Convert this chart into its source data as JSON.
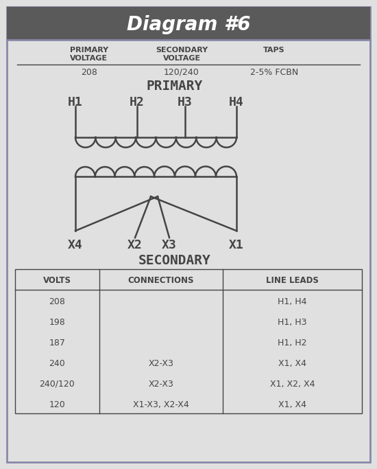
{
  "title": "Diagram #6",
  "title_bg": "#5a5a5a",
  "title_color": "#ffffff",
  "bg_color": "#e0e0e0",
  "border_color": "#8888aa",
  "diagram_color": "#444444",
  "primary_voltage": "208",
  "secondary_voltage": "120/240",
  "taps": "2-5% FCBN",
  "primary_label": "PRIMARY",
  "secondary_label": "SECONDARY",
  "h_labels": [
    "H1",
    "H2",
    "H3",
    "H4"
  ],
  "x_labels": [
    "X4",
    "X2",
    "X3",
    "X1"
  ],
  "table_headers": [
    "VOLTS",
    "CONNECTIONS",
    "LINE LEADS"
  ],
  "table_rows": [
    [
      "208",
      "",
      "H1, H4"
    ],
    [
      "198",
      "",
      "H1, H3"
    ],
    [
      "187",
      "",
      "H1, H2"
    ],
    [
      "240",
      "X2-X3",
      "X1, X4"
    ],
    [
      "240/120",
      "X2-X3",
      "X1, X2, X4"
    ],
    [
      "120",
      "X1-X3, X2-X4",
      "X1, X4"
    ]
  ],
  "figwidth": 5.5,
  "figheight": 6.83,
  "dpi": 100
}
